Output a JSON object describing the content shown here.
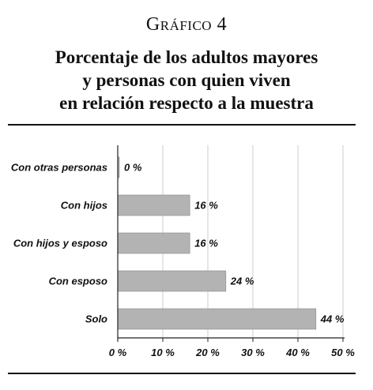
{
  "header": {
    "label": "Gráfico 4",
    "title_lines": [
      "Porcentaje de los adultos mayores",
      "y personas con quien viven",
      "en relación respecto a la muestra"
    ]
  },
  "chart_data": {
    "type": "bar",
    "orientation": "horizontal",
    "categories": [
      "Con otras personas",
      "Con hijos",
      "Con hijos y esposo",
      "Con esposo",
      "Solo"
    ],
    "values": [
      0,
      16,
      16,
      24,
      44
    ],
    "value_labels": [
      "0 %",
      "16 %",
      "16 %",
      "24 %",
      "44 %"
    ],
    "xlim": [
      0,
      50
    ],
    "xticks": [
      0,
      10,
      20,
      30,
      40,
      50
    ],
    "xtick_labels": [
      "0 %",
      "10 %",
      "20 %",
      "30 %",
      "40 %",
      "50 %"
    ],
    "grid": "vertical",
    "bar_color": "#b3b3b3",
    "grid_color": "#cccccc"
  }
}
